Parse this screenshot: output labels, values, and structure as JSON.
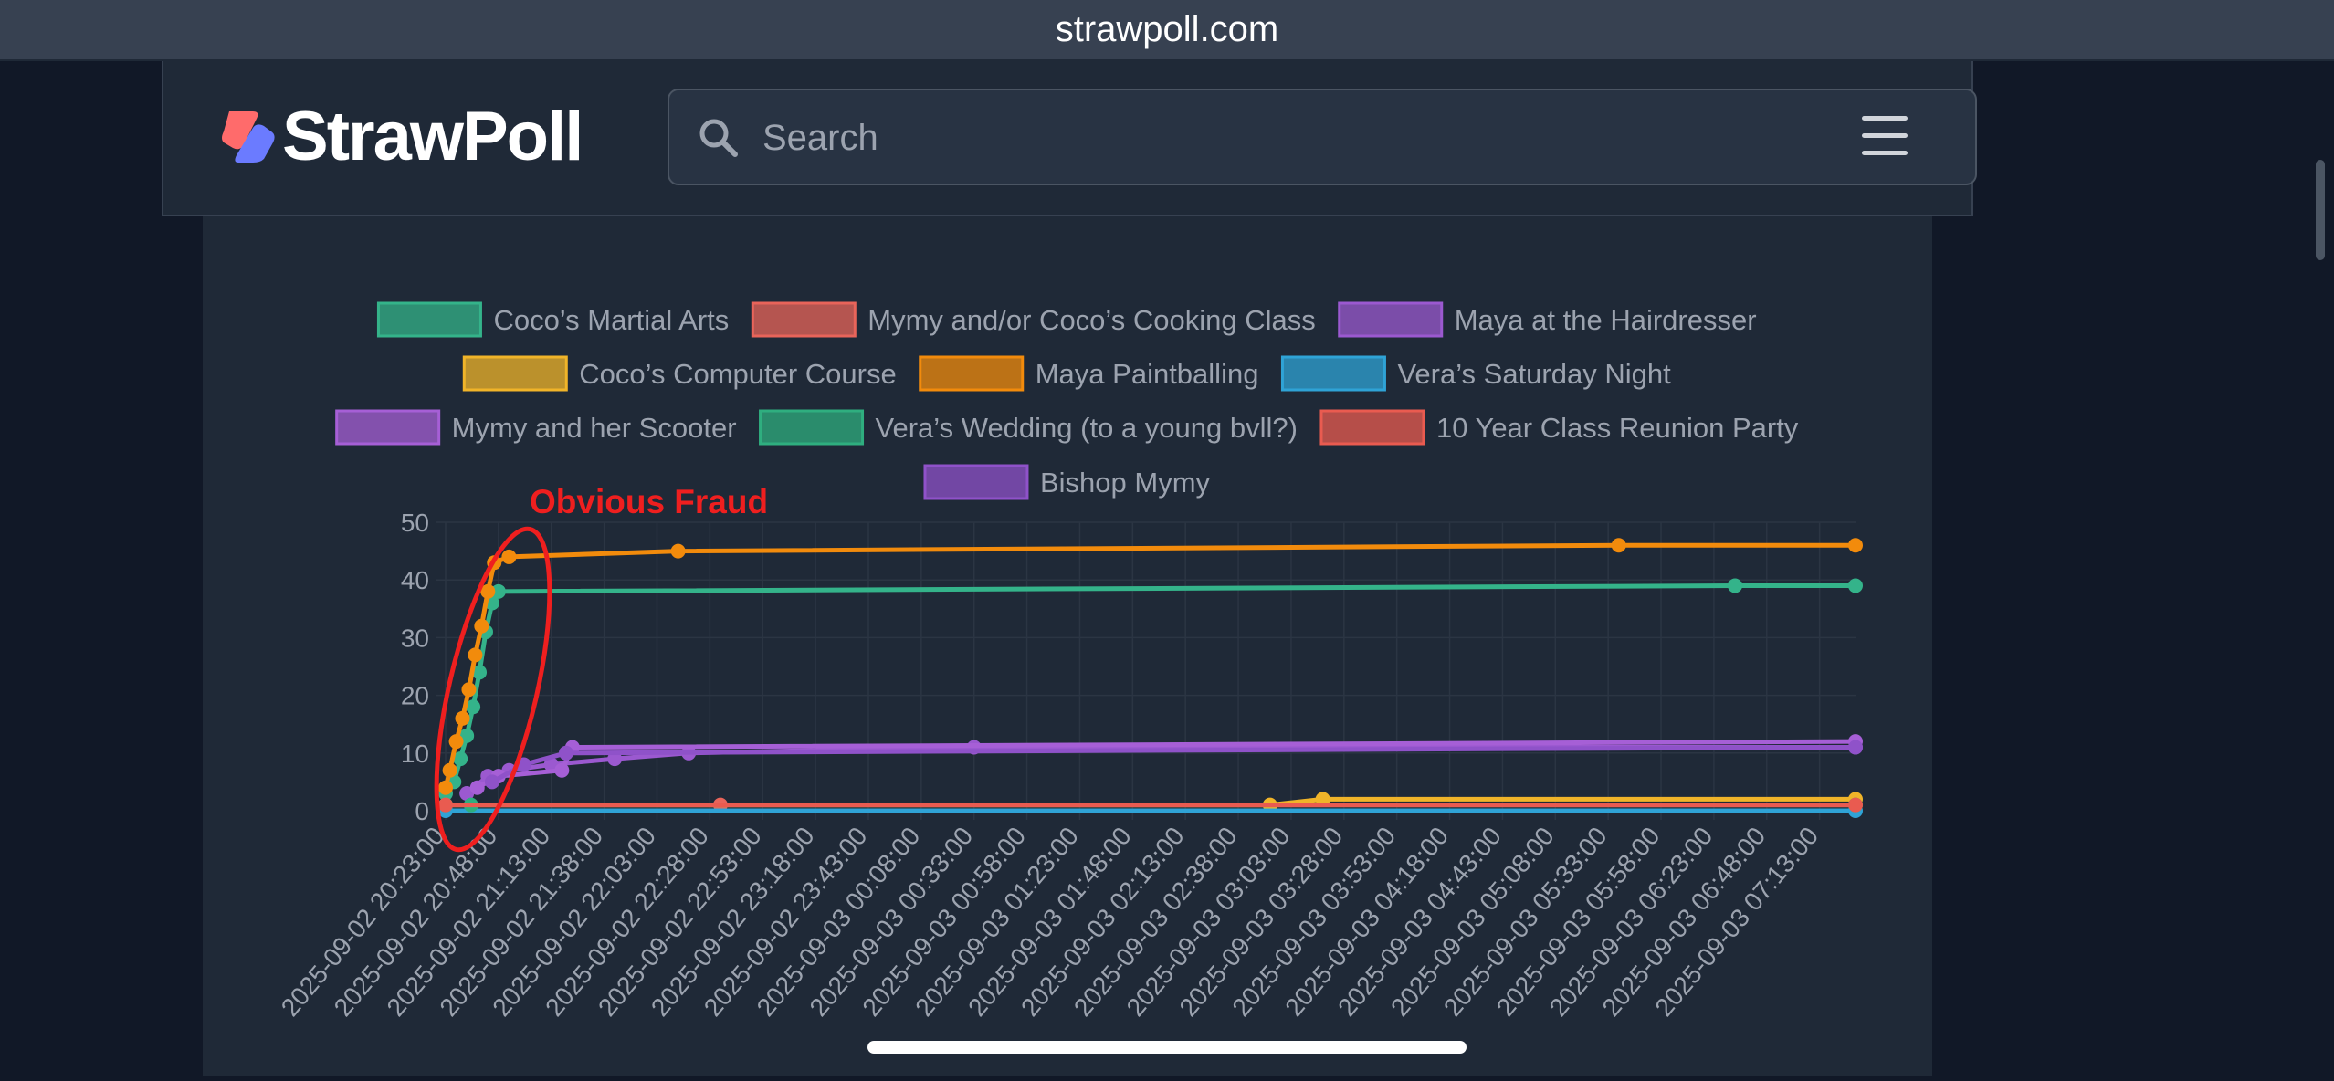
{
  "browser": {
    "url": "strawpoll.com"
  },
  "header": {
    "logo_text": "StrawPoll",
    "search_placeholder": "Search",
    "menu_icon": "hamburger-menu-icon"
  },
  "colors": {
    "page_bg": "#111827",
    "card_bg": "#1f2937",
    "annotation": "#ef1f1f"
  },
  "annotation": {
    "text": "Obvious Fraud"
  },
  "chart_data": {
    "type": "line",
    "title": "",
    "xlabel": "",
    "ylabel": "",
    "ylim": [
      0,
      50
    ],
    "yticks": [
      0,
      10,
      20,
      30,
      40,
      50
    ],
    "grid": true,
    "legend_position": "top",
    "xticks": [
      "2025-09-02 20:23:00",
      "2025-09-02 20:48:00",
      "2025-09-02 21:13:00",
      "2025-09-02 21:38:00",
      "2025-09-02 22:03:00",
      "2025-09-02 22:28:00",
      "2025-09-02 22:53:00",
      "2025-09-02 23:18:00",
      "2025-09-02 23:43:00",
      "2025-09-03 00:08:00",
      "2025-09-03 00:33:00",
      "2025-09-03 00:58:00",
      "2025-09-03 01:23:00",
      "2025-09-03 01:48:00",
      "2025-09-03 02:13:00",
      "2025-09-03 02:38:00",
      "2025-09-03 03:03:00",
      "2025-09-03 03:28:00",
      "2025-09-03 03:53:00",
      "2025-09-03 04:18:00",
      "2025-09-03 04:43:00",
      "2025-09-03 05:08:00",
      "2025-09-03 05:33:00",
      "2025-09-03 05:58:00",
      "2025-09-03 06:23:00",
      "2025-09-03 06:48:00",
      "2025-09-03 07:13:00"
    ],
    "series": [
      {
        "name": "Coco’s Martial Arts",
        "color": "#34b38a",
        "points": [
          [
            "2025-09-02 20:23:00",
            3
          ],
          [
            "2025-09-02 20:27:00",
            5
          ],
          [
            "2025-09-02 20:30:00",
            9
          ],
          [
            "2025-09-02 20:33:00",
            13
          ],
          [
            "2025-09-02 20:36:00",
            18
          ],
          [
            "2025-09-02 20:39:00",
            24
          ],
          [
            "2025-09-02 20:42:00",
            31
          ],
          [
            "2025-09-02 20:45:00",
            36
          ],
          [
            "2025-09-02 20:48:00",
            38
          ],
          [
            "2025-09-03 06:33:00",
            39
          ],
          [
            "2025-09-03 07:30:00",
            39
          ]
        ]
      },
      {
        "name": "Mymy and/or Coco’s Cooking Class",
        "color": "#e8645a",
        "points": [
          [
            "2025-09-02 20:23:00",
            1
          ],
          [
            "2025-09-02 22:33:00",
            1
          ],
          [
            "2025-09-03 07:30:00",
            1
          ]
        ]
      },
      {
        "name": "Maya at the Hairdresser",
        "color": "#9b59d0",
        "points": [
          [
            "2025-09-02 20:33:00",
            3
          ],
          [
            "2025-09-02 20:43:00",
            6
          ],
          [
            "2025-09-02 20:53:00",
            7
          ],
          [
            "2025-09-02 21:13:00",
            8
          ],
          [
            "2025-09-02 21:43:00",
            9
          ],
          [
            "2025-09-02 22:18:00",
            10
          ],
          [
            "2025-09-03 00:33:00",
            11
          ],
          [
            "2025-09-03 07:30:00",
            11
          ]
        ]
      },
      {
        "name": "Coco’s Computer Course",
        "color": "#f0b429",
        "points": [
          [
            "2025-09-02 20:23:00",
            1
          ],
          [
            "2025-09-03 02:53:00",
            1
          ],
          [
            "2025-09-03 03:18:00",
            2
          ],
          [
            "2025-09-03 07:30:00",
            2
          ]
        ]
      },
      {
        "name": "Maya Paintballing",
        "color": "#f28b0c",
        "points": [
          [
            "2025-09-02 20:23:00",
            4
          ],
          [
            "2025-09-02 20:25:00",
            7
          ],
          [
            "2025-09-02 20:28:00",
            12
          ],
          [
            "2025-09-02 20:31:00",
            16
          ],
          [
            "2025-09-02 20:34:00",
            21
          ],
          [
            "2025-09-02 20:37:00",
            27
          ],
          [
            "2025-09-02 20:40:00",
            32
          ],
          [
            "2025-09-02 20:43:00",
            38
          ],
          [
            "2025-09-02 20:46:00",
            43
          ],
          [
            "2025-09-02 20:53:00",
            44
          ],
          [
            "2025-09-02 22:13:00",
            45
          ],
          [
            "2025-09-03 05:38:00",
            46
          ],
          [
            "2025-09-03 07:30:00",
            46
          ]
        ]
      },
      {
        "name": "Vera’s Saturday Night",
        "color": "#2fa3d6",
        "points": [
          [
            "2025-09-02 20:23:00",
            0
          ],
          [
            "2025-09-03 07:30:00",
            0
          ]
        ]
      },
      {
        "name": "Mymy and her Scooter",
        "color": "#a65fd6",
        "points": [
          [
            "2025-09-02 20:38:00",
            4
          ],
          [
            "2025-09-02 20:48:00",
            6
          ],
          [
            "2025-09-02 21:18:00",
            7
          ],
          [
            "2025-09-02 21:23:00",
            11
          ],
          [
            "2025-09-03 07:30:00",
            12
          ]
        ]
      },
      {
        "name": "Vera’s Wedding (to a young bvll?)",
        "color": "#2fae7f",
        "points": [
          [
            "2025-09-02 20:23:00",
            1
          ],
          [
            "2025-09-02 20:35:00",
            1
          ],
          [
            "2025-09-03 07:30:00",
            1
          ]
        ]
      },
      {
        "name": "10 Year Class Reunion Party",
        "color": "#e95b50",
        "points": [
          [
            "2025-09-02 20:23:00",
            1
          ],
          [
            "2025-09-03 07:30:00",
            1
          ]
        ]
      },
      {
        "name": "Bishop Mymy",
        "color": "#8f52c9",
        "points": [
          [
            "2025-09-02 20:45:00",
            5
          ],
          [
            "2025-09-02 21:00:00",
            8
          ],
          [
            "2025-09-02 21:20:00",
            10
          ],
          [
            "2025-09-03 07:30:00",
            11
          ]
        ]
      }
    ]
  }
}
